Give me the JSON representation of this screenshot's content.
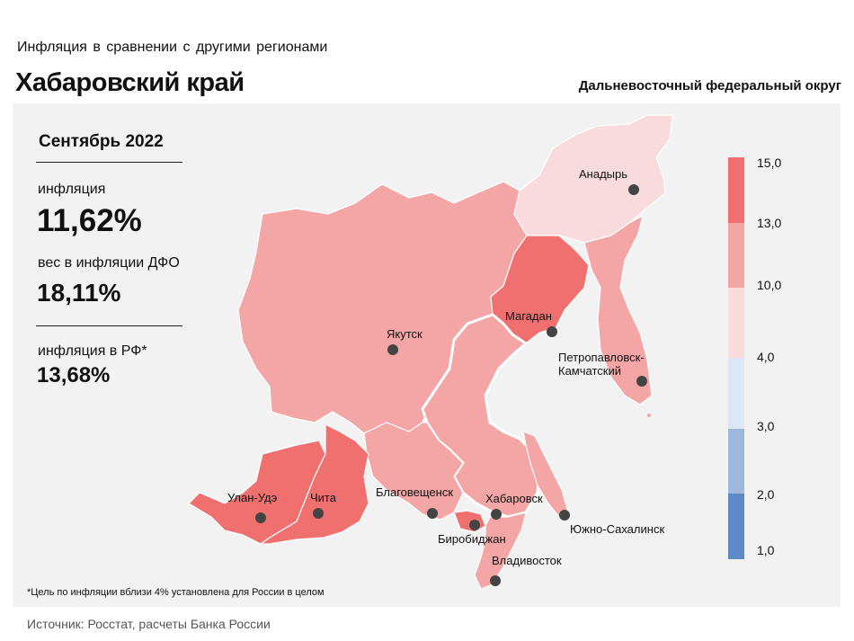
{
  "header": {
    "subtitle": "Инфляция в сравнении с другими регионами",
    "title": "Хабаровский край",
    "district": "Дальневосточный федеральный округ"
  },
  "panel": {
    "month": "Сентябрь 2022",
    "inflation_label": "инфляция",
    "inflation_value": "11,62%",
    "weight_label": "вес в инфляции ДФО",
    "weight_value": "18,11%",
    "rf_label": "инфляция в РФ*",
    "rf_value": "13,68%"
  },
  "footnote": "*Цель по инфляции вблизи 4% установлена для России в целом",
  "source": "Источник: Росстат, расчеты Банка России",
  "legend": {
    "ticks": [
      "15,0",
      "13,0",
      "10,0",
      "4,0",
      "3,0",
      "2,0",
      "1,0"
    ],
    "colors": [
      "#f07070",
      "#f4a6a6",
      "#f9dadd",
      "#dce6f4",
      "#9db8dc",
      "#5b8ac6"
    ]
  },
  "cities": {
    "anadyr": "Анадырь",
    "magadan": "Магадан",
    "yakutsk": "Якутск",
    "petropavlovsk": "Петропавловск-\nКамчатский",
    "ulan_ude": "Улан-Удэ",
    "chita": "Чита",
    "blagoveshchensk": "Благовещенск",
    "khabarovsk": "Хабаровск",
    "birobidzhan": "Биробиджан",
    "yuzhno": "Южно-Сахалинск",
    "vladivostok": "Владивосток"
  }
}
